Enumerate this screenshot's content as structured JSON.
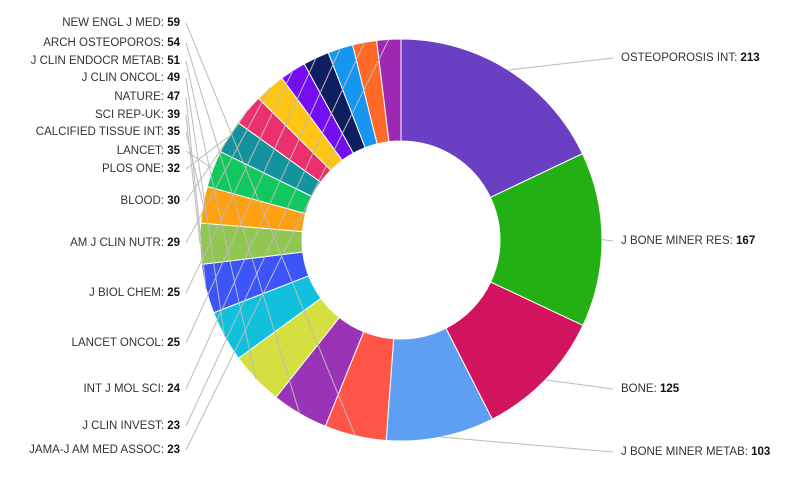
{
  "chart_data": {
    "type": "pie",
    "variant": "donut",
    "title": "",
    "legend": "none",
    "categories": [
      "OSTEOPOROSIS INT",
      "J BONE MINER RES",
      "BONE",
      "J BONE MINER METAB",
      "NEW ENGL J MED",
      "ARCH OSTEOPOROS",
      "J CLIN ENDOCR METAB",
      "J CLIN ONCOL",
      "NATURE",
      "SCI REP-UK",
      "CALCIFIED TISSUE INT",
      "LANCET",
      "PLOS ONE",
      "BLOOD",
      "AM J CLIN NUTR",
      "J BIOL CHEM",
      "LANCET ONCOL",
      "INT J MOL SCI",
      "J CLIN INVEST",
      "JAMA-J AM MED ASSOC"
    ],
    "values": [
      213,
      167,
      125,
      103,
      59,
      54,
      51,
      49,
      47,
      39,
      35,
      35,
      32,
      30,
      29,
      25,
      25,
      24,
      23,
      23
    ],
    "colors": [
      "#6a3fc4",
      "#22b014",
      "#d2145f",
      "#5f9ff2",
      "#ff5547",
      "#9b33b6",
      "#d4e040",
      "#10c0dc",
      "#3d55f8",
      "#92c652",
      "#ffa012",
      "#10c85e",
      "#14939f",
      "#ec2f6e",
      "#ffc514",
      "#740ef0",
      "#0f1e5f",
      "#1696f0",
      "#ff6a28",
      "#9d29b3"
    ],
    "label_separator": ": "
  }
}
